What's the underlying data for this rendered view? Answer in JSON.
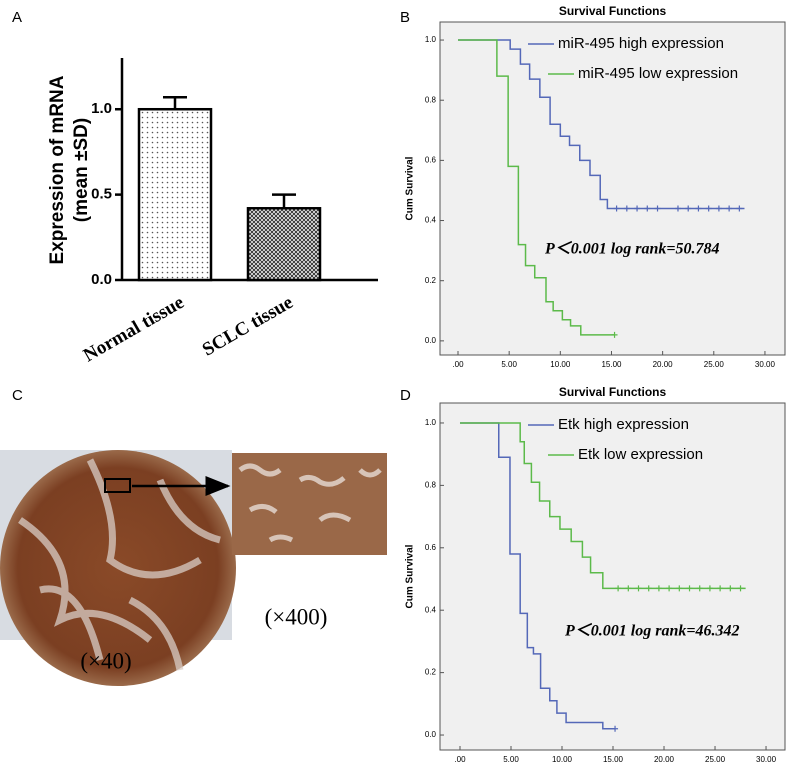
{
  "chart_data": [
    {
      "type": "bar",
      "panel_label": "A",
      "ylabel": [
        "Expression of mRNA",
        "(mean ±SD)"
      ],
      "categories": [
        "Normal tissue",
        "SCLC tissue"
      ],
      "values": [
        1.0,
        0.42
      ],
      "errors": [
        0.07,
        0.08
      ],
      "ylim": [
        0,
        1.3
      ],
      "yticks": [
        {
          "value": 0,
          "label": "0.0"
        },
        0.5,
        {
          "value": 1,
          "label": "1.0"
        }
      ]
    },
    {
      "type": "km",
      "panel_label": "B",
      "title": "Survival Functions",
      "ylabel": "Cum Survival",
      "annotation": "P＜0.001  log rank=50.784",
      "legend": "upper right",
      "xlim": [
        -1.76,
        31.96
      ],
      "ylim": [
        -0.047,
        1.06
      ],
      "xticks": [
        {
          "value": 0,
          "label": ".00"
        },
        {
          "value": 5,
          "label": "5.00"
        },
        {
          "value": 10,
          "label": "10.00"
        },
        {
          "value": 15,
          "label": "15.00"
        },
        {
          "value": 20,
          "label": "20.00"
        },
        {
          "value": 25,
          "label": "25.00"
        },
        {
          "value": 30,
          "label": "30.00"
        }
      ],
      "yticks": [
        {
          "value": 0,
          "label": "0.0"
        },
        0.2,
        0.4,
        0.6,
        0.8,
        {
          "value": 1,
          "label": "1.0"
        }
      ],
      "series": [
        {
          "name": "miR-495 high expression",
          "color": "#5468b8",
          "x": [
            0,
            5.1,
            6.1,
            7.0,
            8.0,
            9.0,
            10.0,
            10.9,
            11.9,
            12.9,
            13.9,
            14.6,
            28
          ],
          "values": [
            1,
            0.97,
            0.92,
            0.87,
            0.81,
            0.72,
            0.68,
            0.65,
            0.6,
            0.55,
            0.47,
            0.44,
            0.44
          ],
          "censored": [
            15.5,
            16.5,
            17.5,
            18.5,
            19.5,
            21.5,
            22.5,
            23.5,
            24.5,
            25.5,
            26.5,
            27.5
          ]
        },
        {
          "name": "miR-495 low expression",
          "color": "#5cba4a",
          "x": [
            0,
            3.8,
            4.9,
            5.9,
            6.6,
            7.5,
            8.6,
            9.3,
            10.2,
            11.0,
            12.0,
            15.3
          ],
          "values": [
            1,
            0.88,
            0.58,
            0.32,
            0.25,
            0.21,
            0.13,
            0.1,
            0.07,
            0.05,
            0.02,
            0.02
          ],
          "censored": [
            15.3
          ]
        }
      ]
    },
    {
      "type": "km",
      "panel_label": "D",
      "title": "Survival Functions",
      "ylabel": "Cum Survival",
      "annotation": "P＜0.001  log rank=46.342",
      "legend": "upper right",
      "xlim": [
        -1.96,
        31.86
      ],
      "ylim": [
        -0.048,
        1.064
      ],
      "xticks": [
        {
          "value": 0,
          "label": ".00"
        },
        {
          "value": 5,
          "label": "5.00"
        },
        {
          "value": 10,
          "label": "10.00"
        },
        {
          "value": 15,
          "label": "15.00"
        },
        {
          "value": 20,
          "label": "20.00"
        },
        {
          "value": 25,
          "label": "25.00"
        },
        {
          "value": 30,
          "label": "30.00"
        }
      ],
      "yticks": [
        {
          "value": 0,
          "label": "0.0"
        },
        0.2,
        0.4,
        0.6,
        0.8,
        {
          "value": 1,
          "label": "1.0"
        }
      ],
      "series": [
        {
          "name": "Etk high expression",
          "color": "#5468b8",
          "x": [
            0,
            3.8,
            4.9,
            5.9,
            6.6,
            7.2,
            7.9,
            8.8,
            9.5,
            10.4,
            11.3,
            14.0,
            15.2
          ],
          "values": [
            1,
            0.89,
            0.58,
            0.39,
            0.28,
            0.26,
            0.15,
            0.11,
            0.07,
            0.04,
            0.04,
            0.02,
            0.02
          ],
          "censored": [
            15.2
          ]
        },
        {
          "name": "Etk low expression",
          "color": "#5cba4a",
          "x": [
            0,
            5.9,
            6.3,
            7.0,
            7.8,
            8.8,
            9.8,
            10.9,
            12.0,
            12.8,
            14.0,
            14.8,
            28
          ],
          "values": [
            1,
            0.94,
            0.87,
            0.81,
            0.75,
            0.7,
            0.66,
            0.62,
            0.57,
            0.52,
            0.47,
            0.47,
            0.47
          ],
          "censored": [
            15.5,
            16.5,
            17.5,
            18.5,
            19.5,
            20.5,
            21.5,
            22.5,
            23.5,
            24.5,
            25.5,
            26.5,
            27.5
          ]
        }
      ]
    }
  ],
  "panel_c": {
    "label": "C",
    "captions": [
      "(×40)",
      "(×400)"
    ]
  }
}
